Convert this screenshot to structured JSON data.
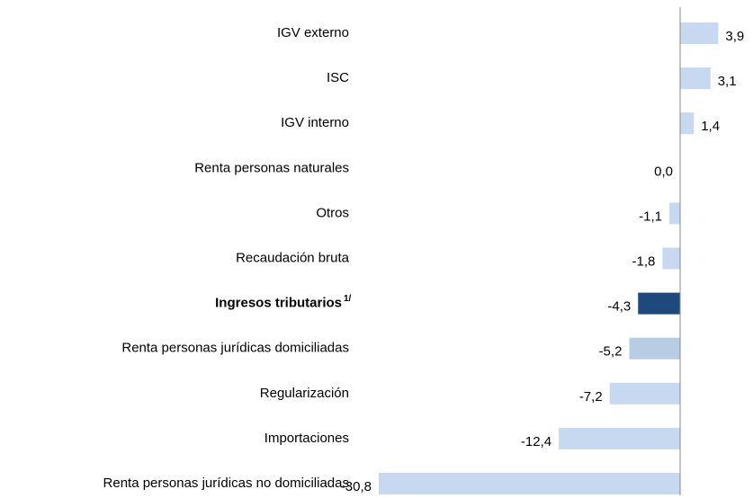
{
  "chart_data": {
    "type": "hbar",
    "categories": [
      "IGV externo",
      "ISC",
      "IGV interno",
      "Renta personas naturales",
      "Otros",
      "Recaudación bruta",
      "Ingresos tributarios",
      "Renta personas jurídicas domiciliadas",
      "Regularización",
      "Importaciones",
      "Renta personas jurídicas no domiciliadas"
    ],
    "values": [
      3.9,
      3.1,
      1.4,
      0.0,
      -1.1,
      -1.8,
      -4.3,
      -5.2,
      -7.2,
      -12.4,
      -30.8
    ],
    "value_labels": [
      "3,9",
      "3,1",
      "1,4",
      "0,0",
      "-1,1",
      "-1,8",
      "-4,3",
      "-5,2",
      "-7,2",
      "-12,4",
      "-30,8"
    ],
    "colors": [
      "#c6d9f1",
      "#c6d9f1",
      "#c6d9f1",
      "#c6d9f1",
      "#c6d9f1",
      "#c6d9f1",
      "#1f497d",
      "#b8cce4",
      "#c6d9f1",
      "#c6d9f1",
      "#c6d9f1"
    ],
    "emphasis": {
      "category": "Ingresos tributarios",
      "note": "1/"
    },
    "xlim": [
      -30.8,
      4.0
    ]
  }
}
